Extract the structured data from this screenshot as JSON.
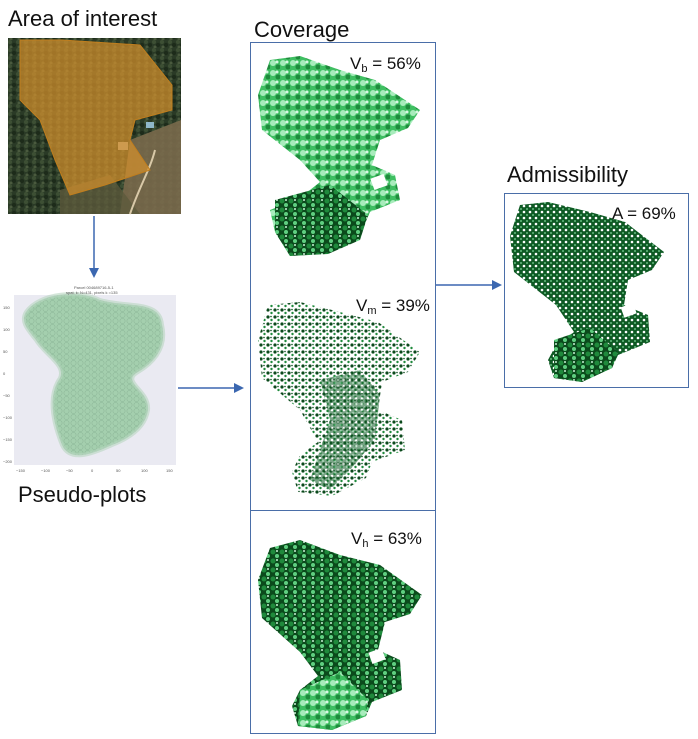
{
  "labels": {
    "area": "Area of interest",
    "pseudo": "Pseudo-plots",
    "coverage": "Coverage",
    "admissibility": "Admissibility"
  },
  "metrics": {
    "vb": {
      "base": "V",
      "sub": "b",
      "value": " = 56%"
    },
    "vm": {
      "base": "V",
      "sub": "m",
      "value": " = 39%"
    },
    "vh": {
      "base": "V",
      "sub": "h",
      "value": " = 63%"
    },
    "a": {
      "text": "A = 69%"
    }
  },
  "pseudo_plot": {
    "title_line1": "Parcel 004689716-5-1",
    "title_line2": "spat. k: N=431, pixels k =135",
    "y_ticks": [
      "150",
      "100",
      "50",
      "0",
      "−50",
      "−100",
      "−150",
      "−200"
    ],
    "x_ticks": [
      "−150",
      "−100",
      "−50",
      "0",
      "50",
      "100",
      "150"
    ]
  },
  "colors": {
    "arrow": "#3b67b0",
    "panel_border": "#4a6ea8",
    "parcel_overlay": "#d4902c",
    "forest_dark": "#0b4a1c",
    "forest_mid": "#1f8a3c",
    "forest_light": "#8fe0a8",
    "pseudo_fill": "#9cc9a7"
  }
}
